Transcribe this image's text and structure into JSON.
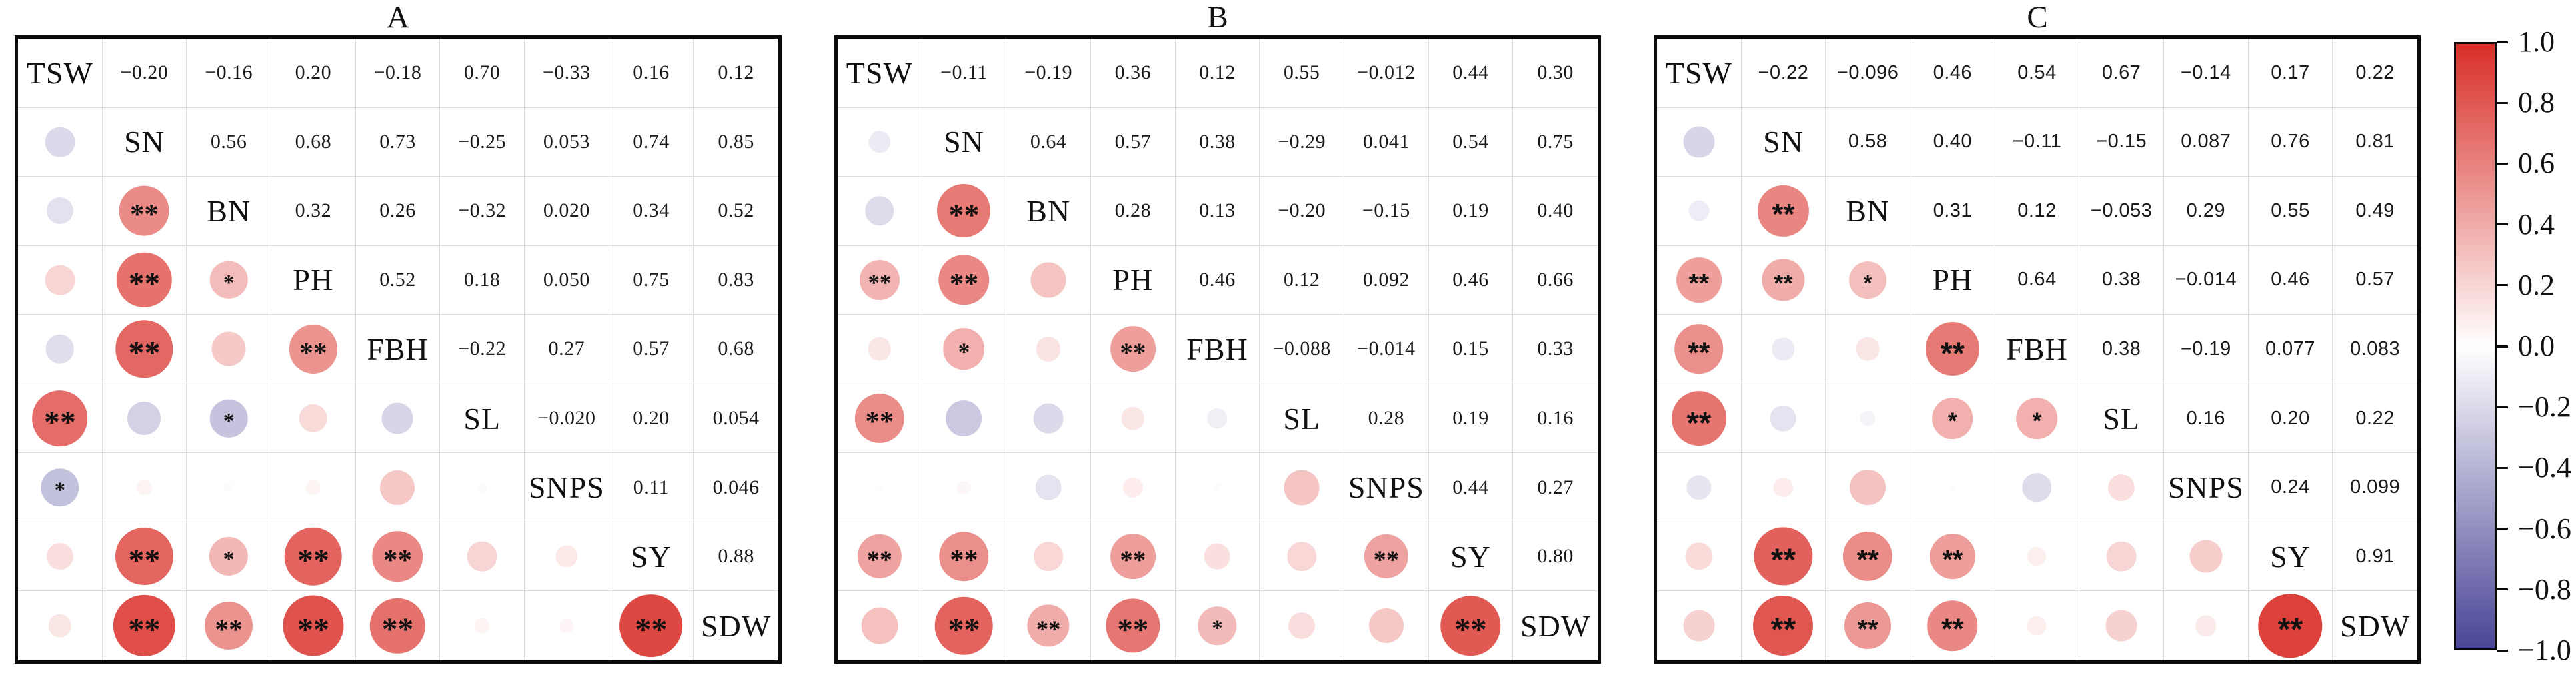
{
  "chart_data": {
    "type": "heatmap",
    "subtype": "correlation-matrix",
    "description": "Three correlation matrices (panels A, B, C). Upper triangle shows correlation coefficients as numbers; lower triangle shows circles whose area and color encode the coefficient; asterisks mark significance.",
    "value_range": [
      -1,
      1
    ],
    "colors": {
      "positive": "#d92f28",
      "negative": "#4a4596",
      "zero": "#ffffff"
    },
    "panels": [
      {
        "title": "A",
        "labels": [
          "TSW",
          "SN",
          "BN",
          "PH",
          "FBH",
          "SL",
          "SNPS",
          "SY",
          "SDW"
        ],
        "upper": [
          [
            "−0.20",
            "−0.16",
            "0.20",
            "−0.18",
            "0.70",
            "−0.33",
            "0.16",
            "0.12"
          ],
          [
            "0.56",
            "0.68",
            "0.73",
            "−0.25",
            "0.053",
            "0.74",
            "0.85"
          ],
          [
            "0.32",
            "0.26",
            "−0.32",
            "0.020",
            "0.34",
            "0.52"
          ],
          [
            "0.52",
            "0.18",
            "0.050",
            "0.75",
            "0.83"
          ],
          [
            "−0.22",
            "0.27",
            "0.57",
            "0.68"
          ],
          [
            "−0.020",
            "0.20",
            "0.054"
          ],
          [
            "0.11",
            "0.046"
          ],
          [
            "0.88"
          ]
        ],
        "stars": [
          [
            ""
          ],
          [
            "",
            "**"
          ],
          [
            "",
            "**",
            "*"
          ],
          [
            "",
            "**",
            "",
            "**"
          ],
          [
            "**",
            "",
            "*",
            "",
            ""
          ],
          [
            "*",
            "",
            "",
            "",
            "",
            ""
          ],
          [
            "",
            "**",
            "*",
            "**",
            "**",
            "",
            ""
          ],
          [
            "",
            "**",
            "**",
            "**",
            "**",
            "",
            "",
            "**"
          ]
        ]
      },
      {
        "title": "B",
        "labels": [
          "TSW",
          "SN",
          "BN",
          "PH",
          "FBH",
          "SL",
          "SNPS",
          "SY",
          "SDW"
        ],
        "upper": [
          [
            "−0.11",
            "−0.19",
            "0.36",
            "0.12",
            "0.55",
            "−0.012",
            "0.44",
            "0.30"
          ],
          [
            "0.64",
            "0.57",
            "0.38",
            "−0.29",
            "0.041",
            "0.54",
            "0.75"
          ],
          [
            "0.28",
            "0.13",
            "−0.20",
            "−0.15",
            "0.19",
            "0.40"
          ],
          [
            "0.46",
            "0.12",
            "0.092",
            "0.46",
            "0.66"
          ],
          [
            "−0.088",
            "−0.014",
            "0.15",
            "0.33"
          ],
          [
            "0.28",
            "0.19",
            "0.16"
          ],
          [
            "0.44",
            "0.27"
          ],
          [
            "0.80"
          ]
        ],
        "stars": [
          [
            ""
          ],
          [
            "",
            "**"
          ],
          [
            "**",
            "**",
            ""
          ],
          [
            "",
            "*",
            "",
            "**"
          ],
          [
            "**",
            "",
            "",
            "",
            ""
          ],
          [
            "",
            "",
            "",
            "",
            "",
            ""
          ],
          [
            "**",
            "**",
            "",
            "**",
            "",
            "",
            "**"
          ],
          [
            "",
            "**",
            "**",
            "**",
            "*",
            "",
            "",
            "**"
          ]
        ]
      },
      {
        "title": "C",
        "labels": [
          "TSW",
          "SN",
          "BN",
          "PH",
          "FBH",
          "SL",
          "SNPS",
          "SY",
          "SDW"
        ],
        "upper": [
          [
            "−0.22",
            "−0.096",
            "0.46",
            "0.54",
            "0.67",
            "−0.14",
            "0.17",
            "0.22"
          ],
          [
            "0.58",
            "0.40",
            "−0.11",
            "−0.15",
            "0.087",
            "0.76",
            "0.81"
          ],
          [
            "0.31",
            "0.12",
            "−0.053",
            "0.29",
            "0.55",
            "0.49"
          ],
          [
            "0.64",
            "0.38",
            "−0.014",
            "0.46",
            "0.57"
          ],
          [
            "0.38",
            "−0.19",
            "0.077",
            "0.083"
          ],
          [
            "0.16",
            "0.20",
            "0.22"
          ],
          [
            "0.24",
            "0.099"
          ],
          [
            "0.91"
          ]
        ],
        "stars": [
          [
            ""
          ],
          [
            "",
            "**"
          ],
          [
            "**",
            "**",
            "*"
          ],
          [
            "**",
            "",
            "",
            "**"
          ],
          [
            "**",
            "",
            "",
            "*",
            "*"
          ],
          [
            "",
            "",
            "",
            "",
            "",
            ""
          ],
          [
            "",
            "**",
            "**",
            "**",
            "",
            "",
            ""
          ],
          [
            "",
            "**",
            "**",
            "**",
            "",
            "",
            "",
            "**"
          ]
        ]
      }
    ]
  },
  "legend": {
    "ticks": [
      "1.0",
      "0.8",
      "0.6",
      "0.4",
      "0.2",
      "0.0",
      "−0.2",
      "−0.4",
      "−0.6",
      "−0.8",
      "−1.0"
    ],
    "top_color": "#d92f28",
    "mid_color": "#ffffff",
    "bottom_color": "#4a4596"
  }
}
